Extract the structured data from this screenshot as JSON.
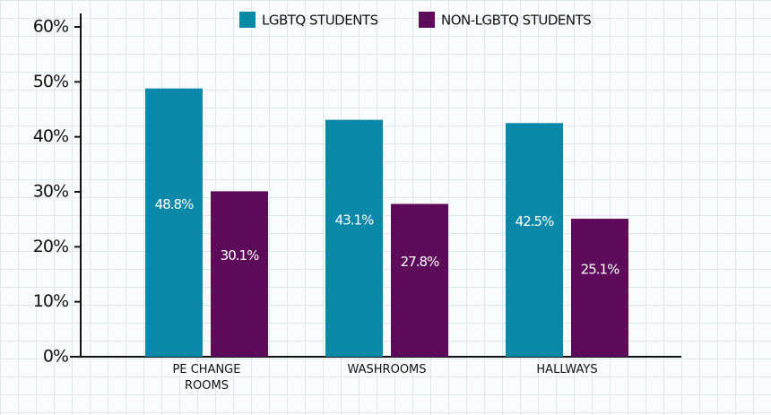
{
  "chart_data": {
    "type": "bar",
    "categories": [
      "PE CHANGE ROOMS",
      "WASHROOMS",
      "HALLWAYS"
    ],
    "series": [
      {
        "name": "LGBTQ STUDENTS",
        "color": "#0a88a8",
        "values": [
          48.8,
          43.1,
          42.5
        ],
        "value_labels": [
          "48.8%",
          "43.1%",
          "42.5%"
        ]
      },
      {
        "name": "NON-LGBTQ STUDENTS",
        "color": "#5e0a5a",
        "values": [
          30.1,
          27.8,
          25.1
        ],
        "value_labels": [
          "30.1%",
          "27.8%",
          "25.1%"
        ]
      }
    ],
    "ylim": [
      0,
      60
    ],
    "yticks": [
      {
        "value": 0,
        "label": "0%"
      },
      {
        "value": 10,
        "label": "10%"
      },
      {
        "value": 20,
        "label": "20%"
      },
      {
        "value": 30,
        "label": "30%"
      },
      {
        "value": 40,
        "label": "40%"
      },
      {
        "value": 50,
        "label": "50%"
      },
      {
        "value": 60,
        "label": "60%"
      }
    ],
    "grid": false,
    "legend": "top"
  }
}
